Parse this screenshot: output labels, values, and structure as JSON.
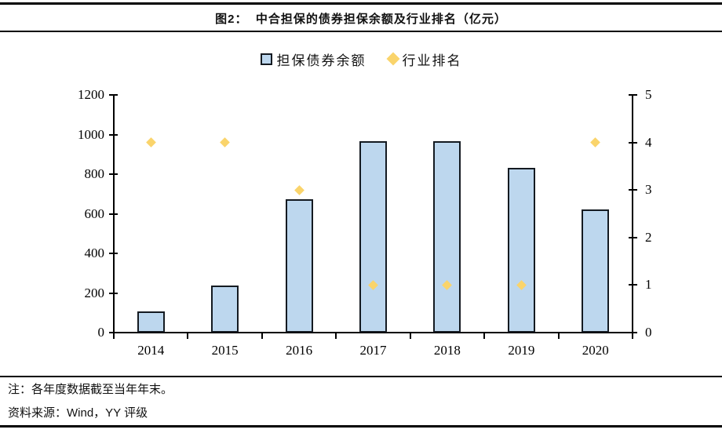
{
  "header": {
    "title": "图2：  中合担保的债券担保余额及行业排名（亿元）"
  },
  "legend": [
    {
      "label": "担保债券余额",
      "marker": "square"
    },
    {
      "label": "行业排名",
      "marker": "diamond"
    }
  ],
  "chart_data": {
    "type": "bar",
    "title": "中合担保的债券担保余额及行业排名（亿元）",
    "categories": [
      "2014",
      "2015",
      "2016",
      "2017",
      "2018",
      "2019",
      "2020"
    ],
    "series": [
      {
        "name": "担保债券余额",
        "type": "bar",
        "axis": "left",
        "values": [
          105,
          238,
          672,
          965,
          965,
          830,
          620
        ],
        "fill": "#BDD7EE",
        "stroke": "#141A21"
      },
      {
        "name": "行业排名",
        "type": "scatter",
        "marker": "diamond",
        "axis": "right",
        "values": [
          4,
          4,
          3,
          1,
          1,
          1,
          4
        ],
        "fill": "#FAD46B"
      }
    ],
    "left_axis": {
      "min": 0,
      "max": 1200,
      "ticks": [
        0,
        200,
        400,
        600,
        800,
        1000,
        1200
      ]
    },
    "right_axis": {
      "min": 0,
      "max": 5,
      "ticks": [
        0,
        1,
        2,
        3,
        4,
        5
      ]
    },
    "grid": false,
    "legend_position": "top"
  },
  "notes": {
    "note": "注：各年度数据截至当年年末。",
    "source": "资料来源：Wind，YY 评级"
  }
}
